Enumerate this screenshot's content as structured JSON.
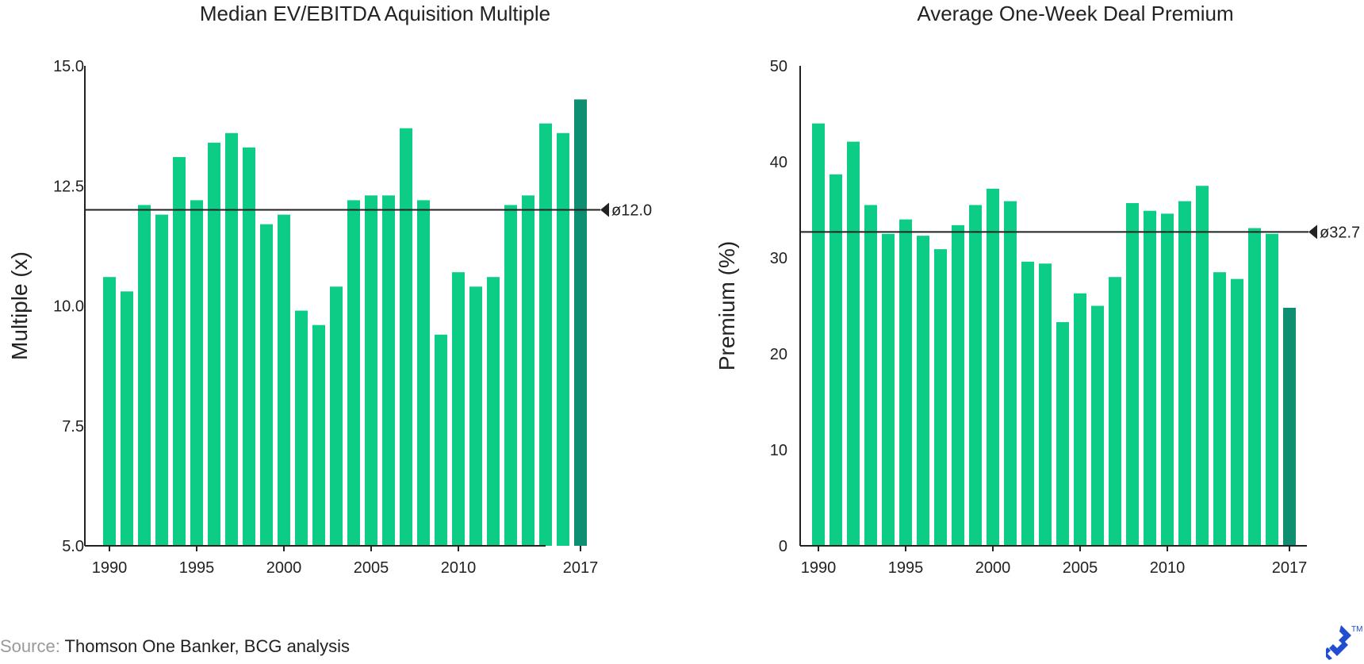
{
  "colors": {
    "bar": "#0dcc86",
    "highlight": "#0e8f72",
    "axis": "#222222",
    "avg_line": "#222222"
  },
  "chart_data": [
    {
      "type": "bar",
      "title": "Median EV/EBITDA Aquisition Multiple",
      "ylabel": "Multiple (x)",
      "xlabel": "",
      "ylim": [
        5.0,
        15.0
      ],
      "yticks": [
        5.0,
        7.5,
        10.0,
        12.5,
        15.0
      ],
      "ytick_labels": [
        "5.0",
        "7.5",
        "10.0",
        "12.5",
        "15.0"
      ],
      "xtick_labels": [
        "1990",
        "1995",
        "2000",
        "2005",
        "2010",
        "2017"
      ],
      "categories": [
        "1990",
        "1991",
        "1992",
        "1993",
        "1994",
        "1995",
        "1996",
        "1997",
        "1998",
        "1999",
        "2000",
        "2001",
        "2002",
        "2003",
        "2004",
        "2005",
        "2006",
        "2007",
        "2008",
        "2009",
        "2010",
        "2011",
        "2012",
        "2013",
        "2014",
        "2015",
        "2016",
        "2017"
      ],
      "values": [
        10.6,
        10.3,
        12.1,
        11.9,
        13.1,
        12.2,
        13.4,
        13.6,
        13.3,
        11.7,
        11.9,
        9.9,
        9.6,
        10.4,
        12.2,
        12.3,
        12.3,
        13.7,
        12.2,
        9.4,
        10.7,
        10.4,
        10.6,
        12.1,
        12.3,
        13.8,
        13.6,
        14.3
      ],
      "highlight_category": "2017",
      "average": 12.0,
      "average_label": "ø12.0",
      "grid": false
    },
    {
      "type": "bar",
      "title": "Average One-Week Deal Premium",
      "ylabel": "Premium (%)",
      "xlabel": "",
      "ylim": [
        0,
        50
      ],
      "yticks": [
        0,
        10,
        20,
        30,
        40,
        50
      ],
      "ytick_labels": [
        "0",
        "10",
        "20",
        "30",
        "40",
        "50"
      ],
      "xtick_labels": [
        "1990",
        "1995",
        "2000",
        "2005",
        "2010",
        "2017"
      ],
      "categories": [
        "1990",
        "1991",
        "1992",
        "1993",
        "1994",
        "1995",
        "1996",
        "1997",
        "1998",
        "1999",
        "2000",
        "2001",
        "2002",
        "2003",
        "2004",
        "2005",
        "2006",
        "2007",
        "2008",
        "2009",
        "2010",
        "2011",
        "2012",
        "2013",
        "2014",
        "2015",
        "2016",
        "2017"
      ],
      "values": [
        44.0,
        38.7,
        42.1,
        35.5,
        32.5,
        34.0,
        32.3,
        30.9,
        33.4,
        35.5,
        37.2,
        35.9,
        29.6,
        29.4,
        23.3,
        26.3,
        25.0,
        28.0,
        35.7,
        34.9,
        34.6,
        35.9,
        37.5,
        28.5,
        27.8,
        33.1,
        32.5,
        24.8
      ],
      "highlight_category": "2017",
      "average": 32.7,
      "average_label": "ø32.7",
      "grid": false
    }
  ],
  "source": {
    "prefix": "Source:",
    "text": "Thomson One Banker, BCG analysis"
  },
  "logo": {
    "icon": "toptal-logo-icon",
    "tm": "TM"
  }
}
